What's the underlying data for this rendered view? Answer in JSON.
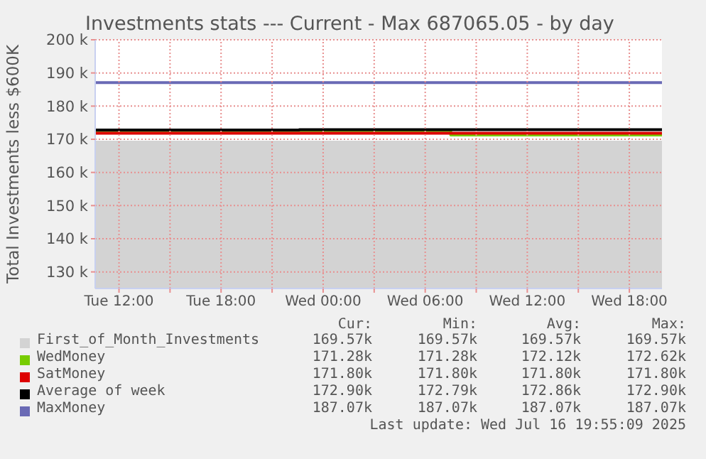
{
  "chart_data": {
    "type": "step",
    "title": "Investments stats --- Current - Max 687065.05 - by day",
    "ylabel": "Total Investments less $600K",
    "xlim": [
      "2025-07-15T10:36",
      "2025-07-16T19:55"
    ],
    "xticks": [
      {
        "value": "2025-07-15T12:00",
        "label": "Tue 12:00"
      },
      {
        "value": "2025-07-15T15:00",
        "label": null
      },
      {
        "value": "2025-07-15T18:00",
        "label": "Tue 18:00"
      },
      {
        "value": "2025-07-15T21:00",
        "label": null
      },
      {
        "value": "2025-07-16T00:00",
        "label": "Wed 00:00"
      },
      {
        "value": "2025-07-16T03:00",
        "label": null
      },
      {
        "value": "2025-07-16T06:00",
        "label": "Wed 06:00"
      },
      {
        "value": "2025-07-16T09:00",
        "label": null
      },
      {
        "value": "2025-07-16T12:00",
        "label": "Wed 12:00"
      },
      {
        "value": "2025-07-16T15:00",
        "label": null
      },
      {
        "value": "2025-07-16T18:00",
        "label": "Wed 18:00"
      }
    ],
    "ylim": [
      125000,
      200000
    ],
    "yticks": [
      {
        "value": 130000,
        "label": "130 k"
      },
      {
        "value": 140000,
        "label": "140 k"
      },
      {
        "value": 150000,
        "label": "150 k"
      },
      {
        "value": 160000,
        "label": "160 k"
      },
      {
        "value": 170000,
        "label": "170 k"
      },
      {
        "value": 180000,
        "label": "180 k"
      },
      {
        "value": 190000,
        "label": "190 k"
      },
      {
        "value": 200000,
        "label": "200 k"
      }
    ],
    "grid": true,
    "legend": "bottom",
    "marker": "none",
    "line_style": "solid",
    "series": [
      {
        "name": "First_of_Month_Investments",
        "type": "area",
        "color": "#d3d3d3",
        "x": [
          "2025-07-15T10:36",
          "2025-07-16T19:55"
        ],
        "values": [
          169570,
          169570
        ]
      },
      {
        "name": "WedMoney",
        "color": "#77cc00",
        "x": [
          "2025-07-15T10:36",
          "2025-07-16T07:30",
          "2025-07-16T19:55"
        ],
        "values": [
          172620,
          171280,
          171280
        ]
      },
      {
        "name": "SatMoney",
        "color": "#dd0000",
        "x": [
          "2025-07-15T10:36",
          "2025-07-16T19:55"
        ],
        "values": [
          171800,
          171800
        ]
      },
      {
        "name": "Average of week",
        "color": "#000000",
        "x": [
          "2025-07-15T10:36",
          "2025-07-15T22:36",
          "2025-07-16T19:55"
        ],
        "values": [
          172790,
          172900,
          172900
        ]
      },
      {
        "name": "MaxMoney",
        "color": "#6a6ab5",
        "x": [
          "2025-07-15T10:36",
          "2025-07-16T19:55"
        ],
        "values": [
          187070,
          187070
        ]
      }
    ],
    "annotations": [
      "Cur:",
      "Min:",
      "Avg:",
      "Max:",
      "169.57k",
      "169.57k",
      "169.57k",
      "169.57k",
      "171.28k",
      "171.28k",
      "172.12k",
      "172.62k",
      "171.80k",
      "171.80k",
      "171.80k",
      "171.80k",
      "172.90k",
      "172.79k",
      "172.86k",
      "172.90k",
      "187.07k",
      "187.07k",
      "187.07k",
      "187.07k",
      "Last update: Wed Jul 16 19:55:09 2025"
    ]
  }
}
